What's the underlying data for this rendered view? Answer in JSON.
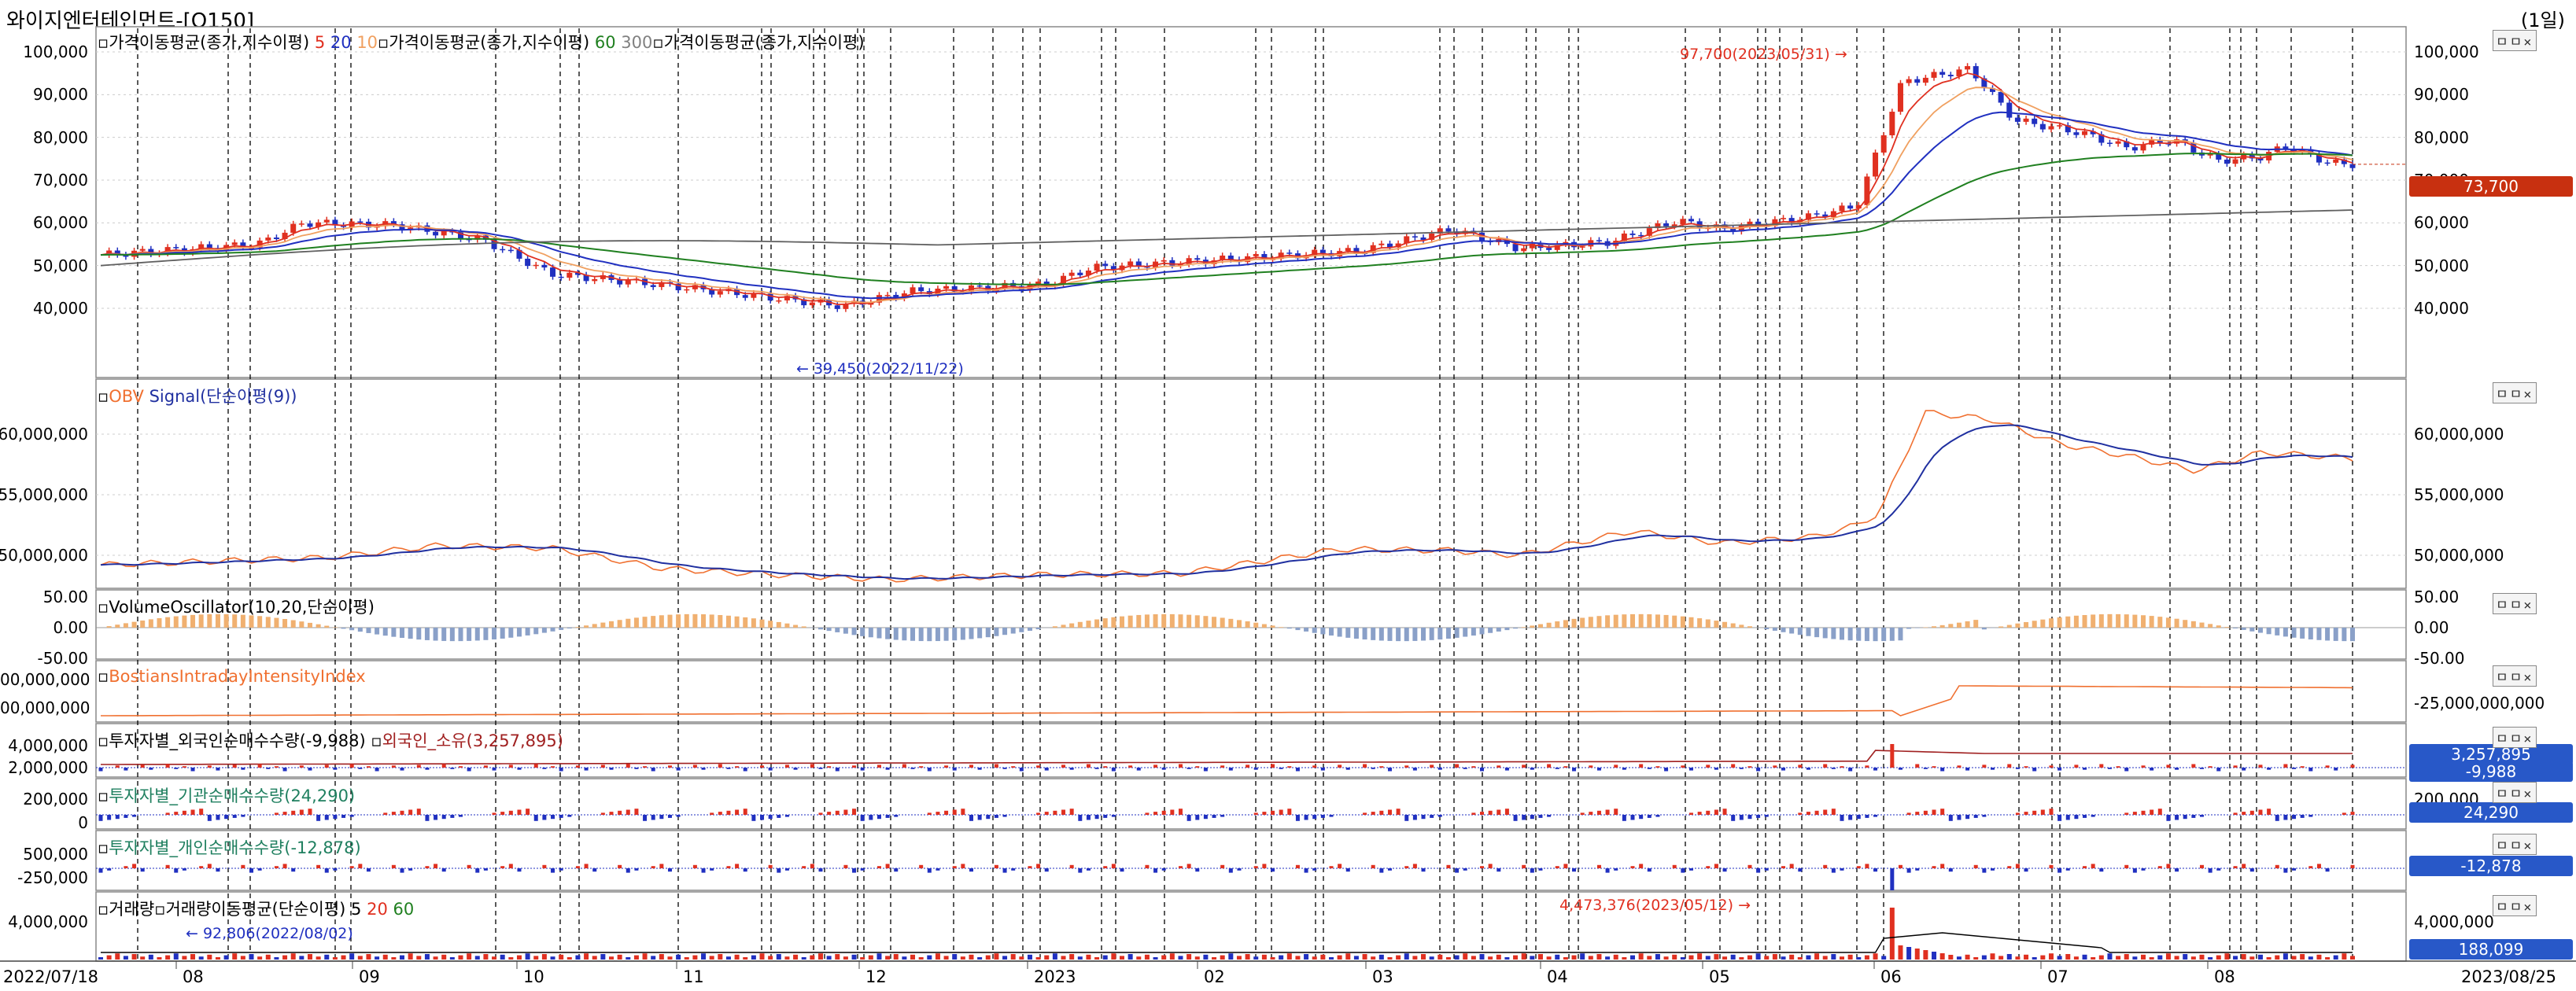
{
  "window": {
    "title": "와이지엔터테인먼트-[Q150]",
    "period": "(1일)"
  },
  "panel_controls": "ㅁㅁ×",
  "price_panel": {
    "legends": [
      {
        "prefix": "가격이동평균(종가,지수이평)",
        "periods": [
          "5",
          "20",
          "10"
        ],
        "colors": [
          "#e03020",
          "#2030c0",
          "#f0a060"
        ]
      },
      {
        "prefix": "가격이동평균(종가,지수이평)",
        "periods": [
          "60",
          "300"
        ],
        "colors": [
          "#208020",
          "#808080"
        ]
      },
      {
        "prefix": "가격이동평균(종가,지수이평)",
        "periods": [],
        "colors": []
      }
    ],
    "y_ticks": [
      "100,000",
      "90,000",
      "80,000",
      "70,000",
      "60,000",
      "50,000",
      "40,000"
    ],
    "y_ticks_right": [
      "100,000",
      "90,000",
      "80,000",
      "70,000",
      "60,000",
      "50,000",
      "40,000"
    ],
    "last_price_badge": "73,700",
    "high_annotation": "97,700(2023/05/31)",
    "low_annotation": "39,450(2022/11/22)"
  },
  "obv_panel": {
    "legend_obv": "OBV",
    "legend_signal": "Signal(단순이평(9))",
    "y_ticks_left": [
      "60,000,000",
      "55,000,000",
      "50,000,000"
    ],
    "y_ticks_right": [
      "60,000,000",
      "55,000,000",
      "50,000,000"
    ]
  },
  "vo_panel": {
    "legend": "VolumeOscillator(10,20,단순이평)",
    "y_ticks_left": [
      "50.00",
      "0.00",
      "-50.00"
    ],
    "y_ticks_right": [
      "50.00",
      "0.00",
      "-50.00"
    ]
  },
  "bii_panel": {
    "legend": "BostiansIntradayIntensityIndex",
    "y_ticks_left": [
      "00,000,000",
      "00,000,000"
    ],
    "y_ticks_right": [
      "-25,000,000,000"
    ]
  },
  "foreign_panel": {
    "legend1": "투자자별_외국인순매수수량(-9,988)",
    "legend2": "외국인_소유(3,257,895)",
    "y_ticks_left": [
      "4,000,000",
      "2,000,000"
    ],
    "badge_top": "3,257,895",
    "badge_bottom": "-9,988"
  },
  "inst_panel": {
    "legend": "투자자별_기관순매수수량(24,290)",
    "y_ticks_left": [
      "200,000",
      "0"
    ],
    "y_tick_right": "200,000",
    "badge": "24,290"
  },
  "indiv_panel": {
    "legend": "투자자별_개인순매수수량(-12,878)",
    "y_ticks_left": [
      "500,000",
      "-250,000"
    ],
    "badge": "-12,878"
  },
  "volume_panel": {
    "legend_prefix": "거래량",
    "legend_ma": "거래량이동평균(단순이평)",
    "ma_periods": [
      "5",
      "20",
      "60"
    ],
    "y_ticks_left": [
      "4,000,000"
    ],
    "y_tick_right": "4,000,000",
    "badge": "188,099",
    "high_annotation": "4,473,376(2023/05/12)",
    "low_annotation": "92,806(2022/08/02)"
  },
  "x_axis": {
    "start_date": "2022/07/18",
    "end_date": "2023/08/25",
    "months": [
      "08",
      "09",
      "10",
      "11",
      "12",
      "2023",
      "02",
      "03",
      "04",
      "05",
      "06",
      "07",
      "08"
    ]
  },
  "colors": {
    "up": "#e03020",
    "down": "#2030c0",
    "badge_price": "#c83010",
    "badge_blue": "#2858c8",
    "obv": "#f07030",
    "signal": "#2030a0"
  }
}
